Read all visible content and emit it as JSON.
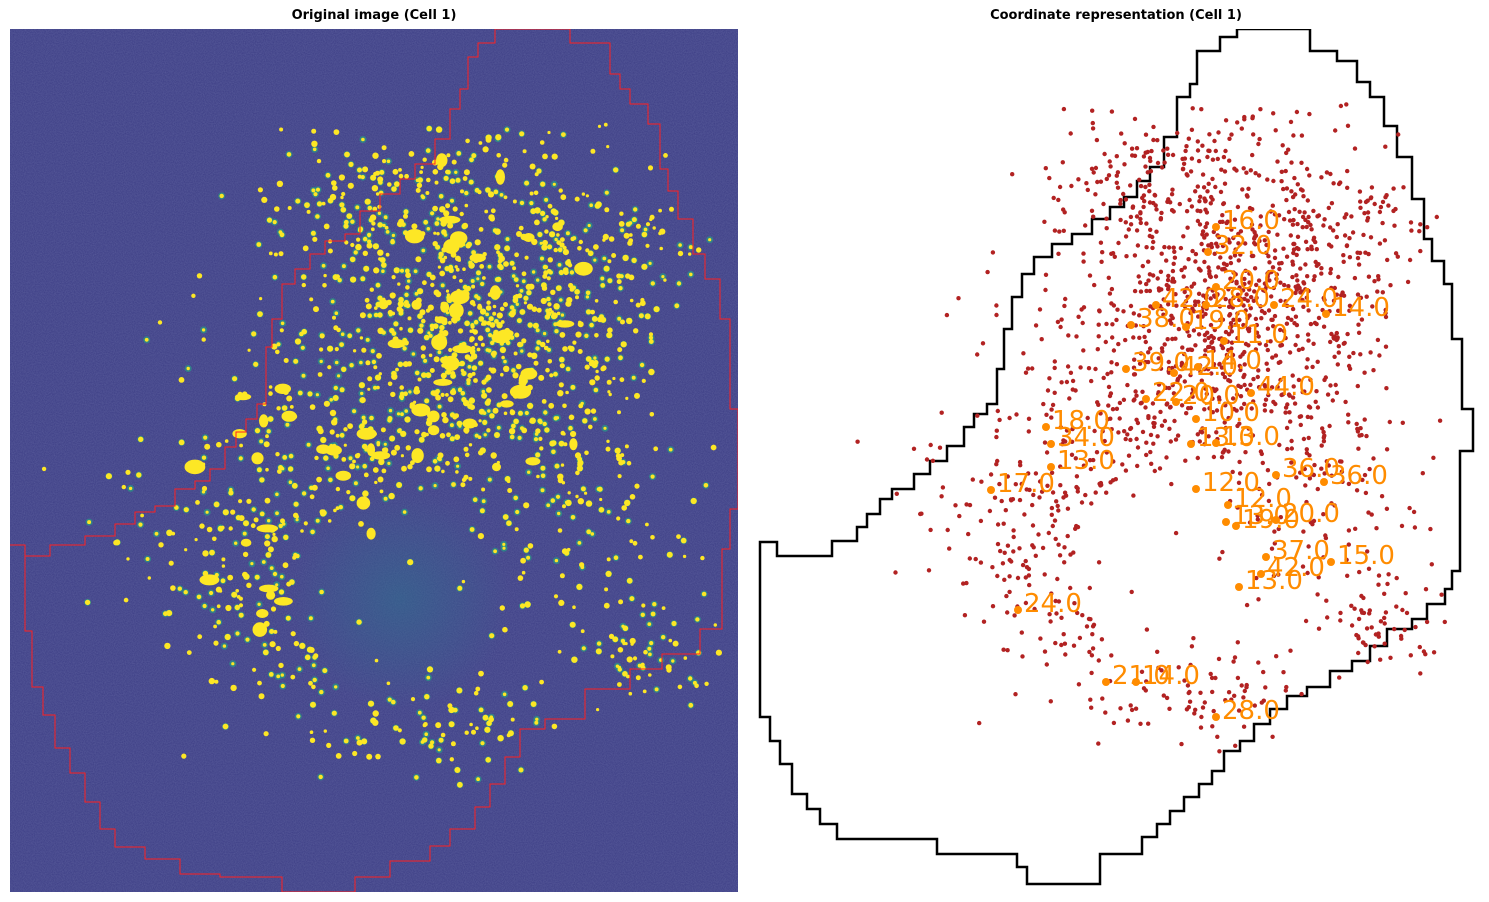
{
  "panels": {
    "left": {
      "title": "Original image (Cell 1)",
      "background_color": "#3b3c84",
      "spot_color": "#fde725",
      "faint_spot_color": "#21a585",
      "outline_color": "#ff2020"
    },
    "right": {
      "title": "Coordinate representation (Cell 1)",
      "outline_color": "#000000",
      "point_color": "#b22222",
      "cluster_color": "#ff8c00"
    }
  },
  "cluster_labels": [
    "16.0",
    "32.0",
    "20.0",
    "42.0",
    "28.0",
    "24.0",
    "14.0",
    "38.0",
    "19.0",
    "11.0",
    "39.0",
    "42.0",
    "14.0",
    "44.0",
    "22.0",
    "20.0",
    "10.0",
    "18.0",
    "34.0",
    "13.0",
    "13.0",
    "13.0",
    "36.0",
    "36.0",
    "17.0",
    "12.0",
    "12.0",
    "13.0",
    "19.0",
    "20.0",
    "37.0",
    "15.0",
    "42.0",
    "13.0",
    "24.0",
    "21.0",
    "14.0",
    "28.0"
  ]
}
